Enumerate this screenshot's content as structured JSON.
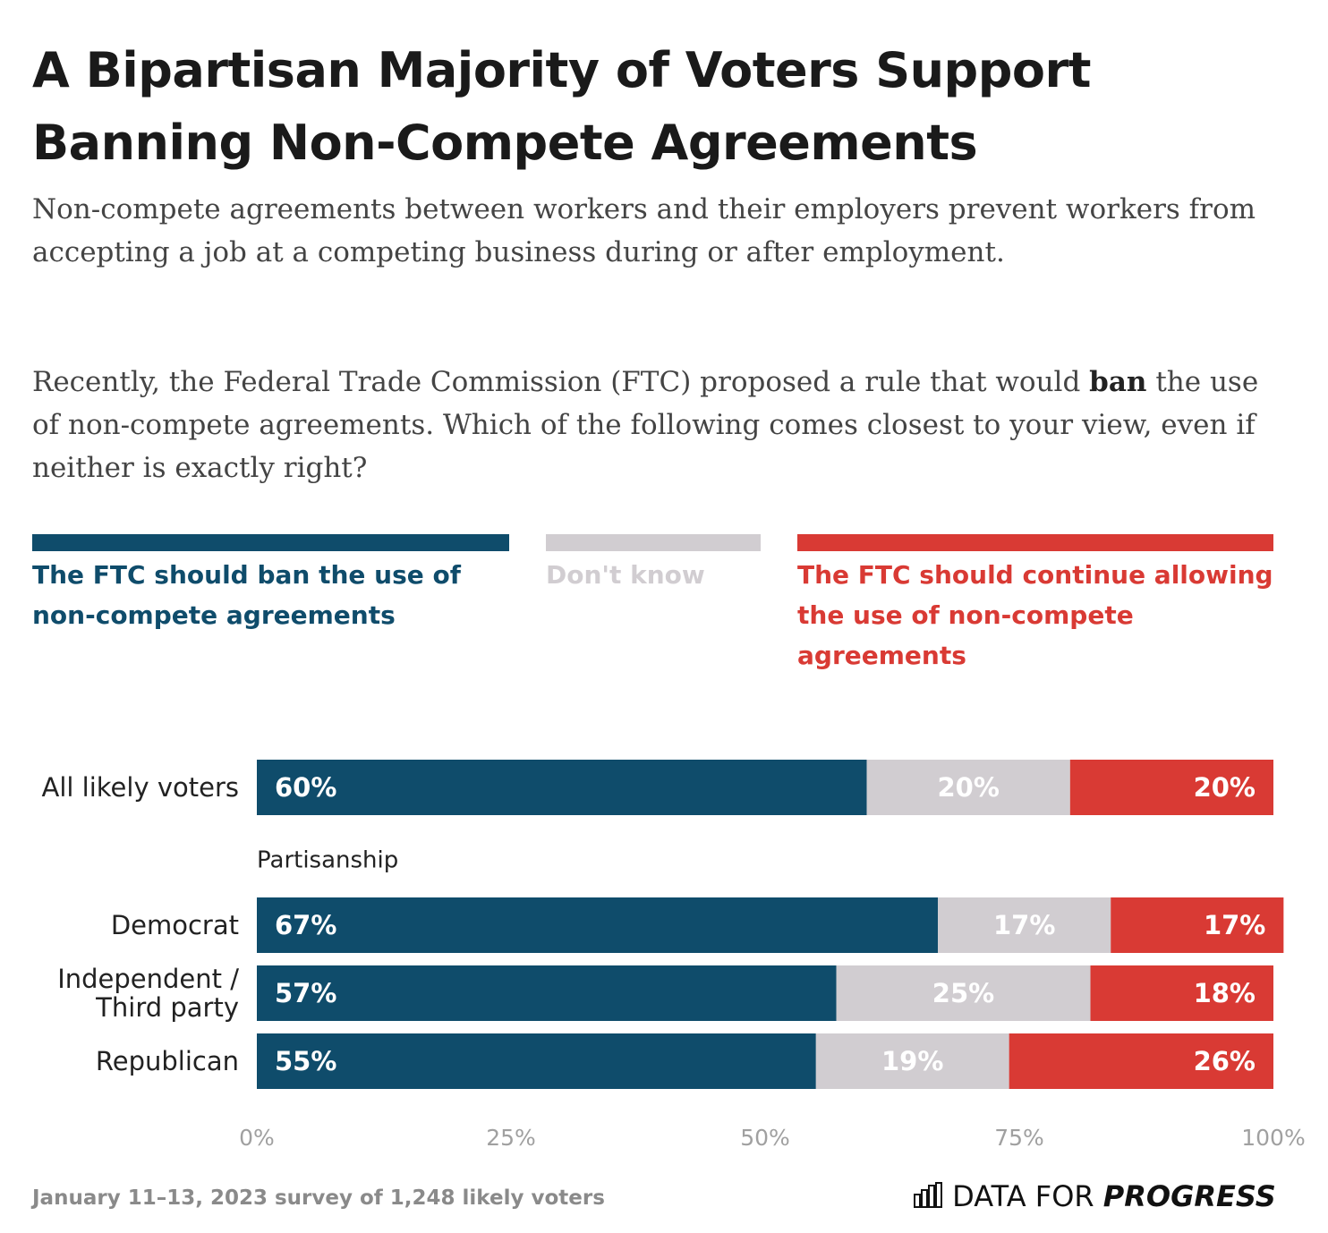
{
  "chart_data": {
    "type": "stacked_bar_horizontal",
    "title": "A Bipartisan Majority of Voters Support Banning Non-Compete Agreements",
    "subtitle": [
      [
        "Non-compete agreements between workers and their employers prevent workers from accepting a job at a competing business during or after employment."
      ],
      [
        "Recently, the Federal Trade Commission (FTC) proposed a rule that would ",
        "ban",
        " the use of non-compete agreements. Which of the following comes closest to your view, even if neither is exactly right?"
      ]
    ],
    "categories": [
      "All likely voters",
      "Democrat",
      "Independent / Third party",
      "Republican"
    ],
    "section_label": "Partisanship",
    "series": [
      {
        "name": "The FTC should ban the use of non-compete agreements",
        "color": "#0f4c6b",
        "label_color": "#ffffff",
        "values": [
          60,
          67,
          57,
          55
        ],
        "value_labels": [
          "60%",
          "67%",
          "57%",
          "55%"
        ]
      },
      {
        "name": "Don't know",
        "color": "#d1cdd1",
        "label_color": "#ffffff",
        "values": [
          20,
          17,
          25,
          19
        ],
        "value_labels": [
          "20%",
          "17%",
          "25%",
          "19%"
        ]
      },
      {
        "name": "The FTC should continue allowing the use of non-compete agreements",
        "color": "#d93a34",
        "label_color": "#ffffff",
        "values": [
          20,
          17,
          18,
          26
        ],
        "value_labels": [
          "20%",
          "17%",
          "18%",
          "26%"
        ]
      }
    ],
    "xlim": [
      0,
      100
    ],
    "xticks": [
      {
        "value": 0,
        "label": "0%"
      },
      {
        "value": 25,
        "label": "25%"
      },
      {
        "value": 50,
        "label": "50%"
      },
      {
        "value": 75,
        "label": "75%"
      },
      {
        "value": 100,
        "label": "100%"
      }
    ],
    "grid": false,
    "source": "January 11–13, 2023 survey of 1,248 likely voters",
    "logo": [
      "DATA FOR",
      "PROGRESS"
    ]
  }
}
